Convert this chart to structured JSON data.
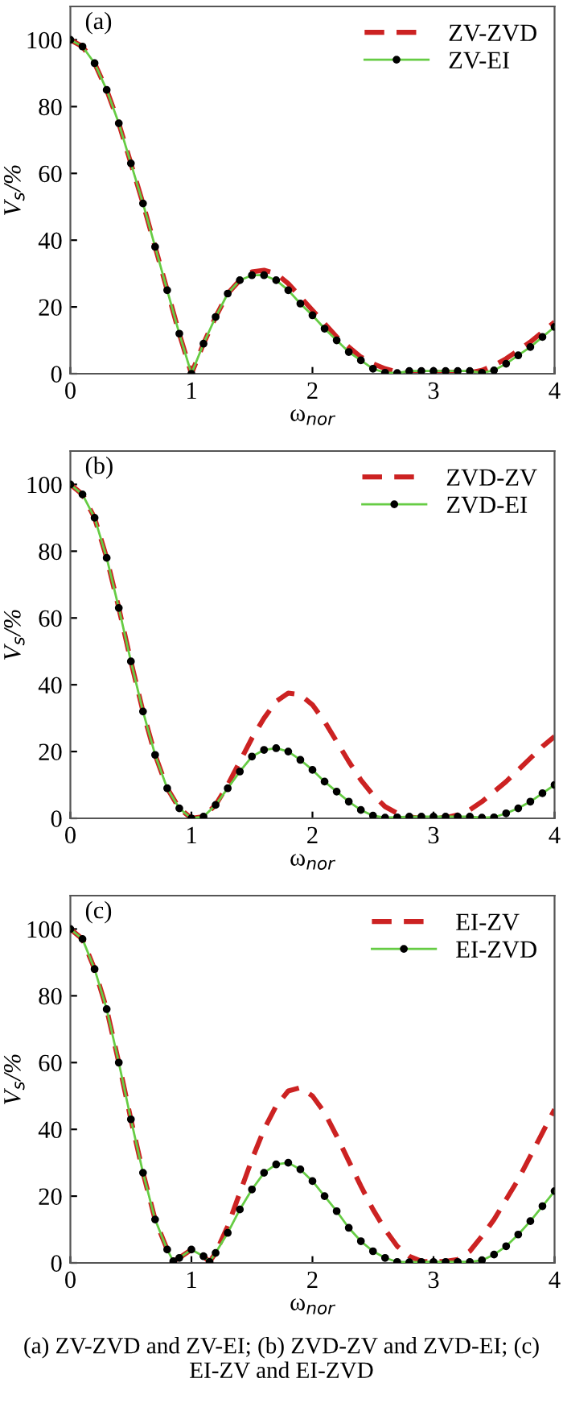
{
  "chart_data": [
    {
      "type": "line",
      "annotations": [
        "(a)"
      ],
      "xlabel": "ω$_{nor}$",
      "ylabel": "V$_{s}$/%",
      "xlim": [
        0,
        4
      ],
      "ylim": [
        0,
        110
      ],
      "xticks": [
        0,
        1,
        2,
        3,
        4
      ],
      "yticks": [
        0,
        20,
        40,
        60,
        80,
        100
      ],
      "legend": "top right",
      "grid": false,
      "x": [
        0,
        0.1,
        0.2,
        0.3,
        0.4,
        0.5,
        0.6,
        0.7,
        0.8,
        0.9,
        1.0,
        1.1,
        1.2,
        1.3,
        1.4,
        1.5,
        1.6,
        1.7,
        1.8,
        1.9,
        2.0,
        2.1,
        2.2,
        2.3,
        2.4,
        2.5,
        2.6,
        2.7,
        2.8,
        2.9,
        3.0,
        3.1,
        3.2,
        3.3,
        3.4,
        3.5,
        3.6,
        3.7,
        3.8,
        3.9,
        4.0
      ],
      "series": [
        {
          "name": "ZV-ZVD",
          "color": "#cc2222",
          "line_style": "dashed",
          "marker": "none",
          "values": [
            100,
            98,
            93,
            85,
            75,
            63,
            51,
            38,
            25,
            12,
            0,
            9,
            17,
            24,
            28,
            30.5,
            31,
            30,
            27,
            23,
            19,
            15,
            11,
            8,
            5,
            3,
            1.5,
            0.5,
            0.2,
            0.2,
            0.3,
            0.5,
            0.4,
            0.3,
            1,
            2.5,
            4.5,
            7,
            9.5,
            12.5,
            15.5
          ]
        },
        {
          "name": "ZV-EI",
          "color": "#66cc44",
          "line_style": "solid",
          "marker": "circle",
          "values": [
            100,
            98,
            93,
            85,
            75,
            63,
            51,
            38,
            25,
            12,
            0,
            9,
            17,
            24,
            28,
            29.5,
            29.5,
            28,
            25,
            21,
            17.5,
            13.5,
            10,
            6.5,
            4,
            1.5,
            0.3,
            0.2,
            0.8,
            0.8,
            0.8,
            0.8,
            0.8,
            0.8,
            0.3,
            1,
            3,
            5.5,
            8,
            11,
            14
          ]
        }
      ]
    },
    {
      "type": "line",
      "annotations": [
        "(b)"
      ],
      "xlabel": "ω$_{nor}$",
      "ylabel": "V$_{s}$/%",
      "xlim": [
        0,
        4
      ],
      "ylim": [
        0,
        110
      ],
      "xticks": [
        0,
        1,
        2,
        3,
        4
      ],
      "yticks": [
        0,
        20,
        40,
        60,
        80,
        100
      ],
      "legend": "top right",
      "grid": false,
      "x": [
        0,
        0.1,
        0.2,
        0.3,
        0.4,
        0.5,
        0.6,
        0.7,
        0.8,
        0.9,
        1.0,
        1.1,
        1.2,
        1.3,
        1.4,
        1.5,
        1.6,
        1.7,
        1.8,
        1.9,
        2.0,
        2.1,
        2.2,
        2.3,
        2.4,
        2.5,
        2.6,
        2.7,
        2.8,
        2.9,
        3.0,
        3.1,
        3.2,
        3.3,
        3.4,
        3.5,
        3.6,
        3.7,
        3.8,
        3.9,
        4.0
      ],
      "series": [
        {
          "name": "ZVD-ZV",
          "color": "#cc2222",
          "line_style": "dashed",
          "marker": "none",
          "values": [
            100,
            97,
            90,
            78,
            63,
            47,
            32,
            19,
            9,
            3,
            0,
            0.5,
            4,
            10,
            17,
            24,
            30,
            35,
            37.5,
            37,
            34,
            29,
            23,
            17,
            11.5,
            7,
            3.5,
            1.5,
            0.4,
            0,
            0,
            0.2,
            1,
            2.5,
            5,
            8,
            11,
            14.5,
            18,
            21.5,
            24.5
          ]
        },
        {
          "name": "ZVD-EI",
          "color": "#66cc44",
          "line_style": "solid",
          "marker": "circle",
          "values": [
            100,
            97,
            90,
            78,
            63,
            47,
            32,
            19,
            9,
            3,
            0,
            0.5,
            4,
            9,
            14,
            18.5,
            20.5,
            21,
            20,
            17.5,
            14.5,
            11,
            8,
            5,
            2.5,
            0.8,
            0.2,
            0.3,
            0.5,
            0.5,
            0.5,
            0.5,
            0.5,
            0.5,
            0.2,
            0.3,
            1.5,
            3,
            5,
            7.5,
            10
          ]
        }
      ]
    },
    {
      "type": "line",
      "annotations": [
        "(c)",
        "(a) ZV-ZVD and ZV-EI; (b) ZVD-ZV and ZVD-EI; (c) EI-ZV and EI-ZVD"
      ],
      "xlabel": "ω$_{nor}$",
      "ylabel": "V$_{s}$/%",
      "xlim": [
        0,
        4
      ],
      "ylim": [
        0,
        110
      ],
      "xticks": [
        0,
        1,
        2,
        3,
        4
      ],
      "yticks": [
        0,
        20,
        40,
        60,
        80,
        100
      ],
      "legend": "top right",
      "grid": false,
      "x": [
        0,
        0.1,
        0.2,
        0.3,
        0.4,
        0.5,
        0.6,
        0.7,
        0.8,
        0.85,
        0.9,
        1.0,
        1.1,
        1.15,
        1.2,
        1.3,
        1.4,
        1.5,
        1.6,
        1.7,
        1.8,
        1.9,
        2.0,
        2.1,
        2.2,
        2.3,
        2.4,
        2.5,
        2.6,
        2.7,
        2.8,
        2.9,
        3.0,
        3.1,
        3.2,
        3.3,
        3.4,
        3.5,
        3.6,
        3.7,
        3.8,
        3.9,
        4.0
      ],
      "series": [
        {
          "name": "EI-ZV",
          "color": "#cc2222",
          "line_style": "dashed",
          "marker": "none",
          "values": [
            100,
            97,
            88,
            76,
            60,
            43,
            27,
            13,
            4,
            0.5,
            1.5,
            4,
            2,
            0.3,
            3,
            11,
            21,
            31,
            40,
            47,
            51.5,
            52.5,
            50,
            45,
            38,
            30.5,
            23,
            16,
            10,
            5,
            2,
            0.5,
            0.3,
            0.5,
            1,
            3.5,
            8,
            13,
            19,
            25,
            32,
            39,
            46
          ]
        },
        {
          "name": "EI-ZVD",
          "color": "#66cc44",
          "line_style": "solid",
          "marker": "circle",
          "values": [
            100,
            97,
            88,
            76,
            60,
            43,
            27,
            13,
            4,
            0.5,
            1.5,
            4,
            2,
            0.3,
            3,
            9,
            16,
            22,
            27,
            29.5,
            30,
            28,
            24.5,
            20,
            15.5,
            10.5,
            6.5,
            3.5,
            1.5,
            0.3,
            0.2,
            0.3,
            0.3,
            0.3,
            0.3,
            0.3,
            0.8,
            2.5,
            5,
            8.5,
            12.5,
            17,
            21.5
          ]
        }
      ]
    }
  ]
}
